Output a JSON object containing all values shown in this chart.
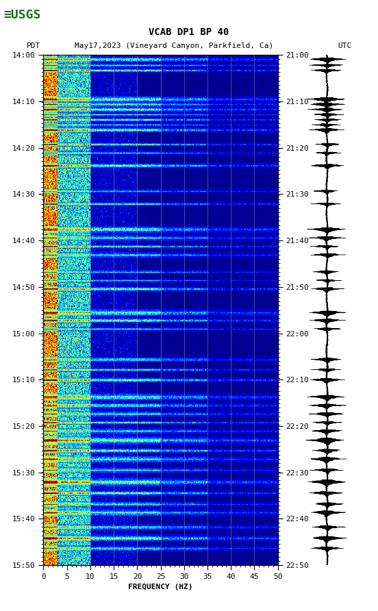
{
  "title_line1": "VCAB DP1 BP 40",
  "title_line2_left": "PDT",
  "title_line2_mid": "May17,2023 (Vineyard Canyon, Parkfield, Ca)",
  "title_line2_right": "UTC",
  "xlabel": "FREQUENCY (HZ)",
  "left_times": [
    "14:00",
    "14:10",
    "14:20",
    "14:30",
    "14:40",
    "14:50",
    "15:00",
    "15:10",
    "15:20",
    "15:30",
    "15:40",
    "15:50"
  ],
  "right_times": [
    "21:00",
    "21:10",
    "21:20",
    "21:30",
    "21:40",
    "21:50",
    "22:00",
    "22:10",
    "22:20",
    "22:30",
    "22:40",
    "22:50"
  ],
  "freq_ticks": [
    0,
    5,
    10,
    15,
    20,
    25,
    30,
    35,
    40,
    45,
    50
  ],
  "freq_min": 0,
  "freq_max": 50,
  "n_time": 600,
  "n_freq": 500,
  "seed": 7,
  "bg_color": "#ffffff",
  "usgs_green": "#1a6b1a",
  "font_size_title": 10,
  "font_size_labels": 8,
  "grid_line_freqs": [
    5,
    10,
    15,
    20,
    25,
    30,
    35,
    40,
    45
  ]
}
